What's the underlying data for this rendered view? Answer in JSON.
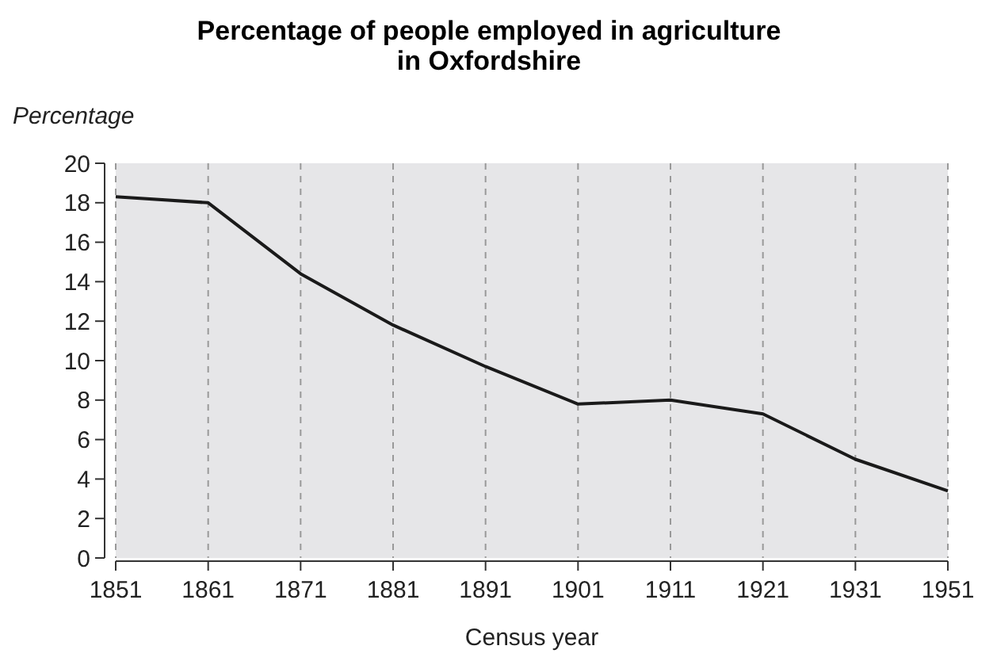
{
  "chart_data": {
    "type": "line",
    "title": "Percentage of people employed in agriculture\nin Oxfordshire",
    "xlabel": "Census year",
    "ylabel": "Percentage",
    "categories": [
      "1851",
      "1861",
      "1871",
      "1881",
      "1891",
      "1901",
      "1911",
      "1921",
      "1931",
      "1951"
    ],
    "series": [
      {
        "color": "#1a1a1a",
        "values": [
          18.3,
          18.0,
          14.4,
          11.8,
          9.7,
          7.8,
          8.0,
          7.3,
          5.0,
          3.4
        ]
      }
    ],
    "ylim": [
      0,
      20
    ],
    "yticks": [
      0,
      2,
      4,
      6,
      8,
      10,
      12,
      14,
      16,
      18,
      20
    ],
    "grid": "x",
    "marker": "none",
    "line_style": "solid"
  }
}
